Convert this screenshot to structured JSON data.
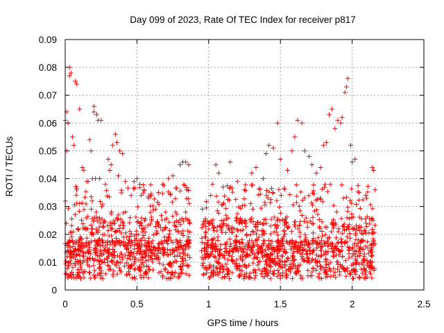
{
  "chart_data": {
    "type": "scatter",
    "title": "Day 099 of 2023, Rate Of TEC Index for receiver p817",
    "xlabel": "GPS time / hours",
    "ylabel": "ROTI / TECUs",
    "xlim": [
      0,
      2.5
    ],
    "ylim": [
      0,
      0.09
    ],
    "xticks": [
      0,
      0.5,
      1,
      1.5,
      2,
      2.5
    ],
    "xtick_labels": [
      "0",
      "0.5",
      "1",
      "1.5",
      "2",
      "2.5"
    ],
    "yticks": [
      0,
      0.01,
      0.02,
      0.03,
      0.04,
      0.05,
      0.06,
      0.07,
      0.08,
      0.09
    ],
    "ytick_labels": [
      "0",
      "0.01",
      "0.02",
      "0.03",
      "0.04",
      "0.05",
      "0.06",
      "0.07",
      "0.08",
      "0.09"
    ],
    "grid": true,
    "marker": "+",
    "series_color": "#ff0000",
    "series": [
      {
        "segments": [
          [
            0.0,
            0.87
          ],
          [
            0.95,
            2.16
          ]
        ],
        "points": [
          [
            0.0,
            0.061
          ],
          [
            0.01,
            0.064
          ],
          [
            0.01,
            0.05
          ],
          [
            0.02,
            0.06
          ],
          [
            0.03,
            0.08
          ],
          [
            0.03,
            0.077
          ],
          [
            0.04,
            0.078
          ],
          [
            0.05,
            0.055
          ],
          [
            0.06,
            0.052
          ],
          [
            0.07,
            0.075
          ],
          [
            0.08,
            0.074
          ],
          [
            0.1,
            0.065
          ],
          [
            0.12,
            0.044
          ],
          [
            0.15,
            0.039
          ],
          [
            0.17,
            0.054
          ],
          [
            0.18,
            0.05
          ],
          [
            0.2,
            0.066
          ],
          [
            0.2,
            0.064
          ],
          [
            0.22,
            0.063
          ],
          [
            0.23,
            0.061
          ],
          [
            0.25,
            0.061
          ],
          [
            0.3,
            0.047
          ],
          [
            0.33,
            0.052
          ],
          [
            0.35,
            0.056
          ],
          [
            0.36,
            0.053
          ],
          [
            0.38,
            0.05
          ],
          [
            0.4,
            0.049
          ],
          [
            0.13,
            0.043
          ],
          [
            0.16,
            0.039
          ],
          [
            0.19,
            0.04
          ],
          [
            0.21,
            0.04
          ],
          [
            0.24,
            0.04
          ],
          [
            0.28,
            0.038
          ],
          [
            0.31,
            0.043
          ],
          [
            0.32,
            0.045
          ],
          [
            0.37,
            0.041
          ],
          [
            0.42,
            0.039
          ],
          [
            0.48,
            0.039
          ],
          [
            0.5,
            0.04
          ],
          [
            0.52,
            0.038
          ],
          [
            0.55,
            0.036
          ],
          [
            0.6,
            0.034
          ],
          [
            0.65,
            0.035
          ],
          [
            0.68,
            0.038
          ],
          [
            0.72,
            0.04
          ],
          [
            0.75,
            0.041
          ],
          [
            0.8,
            0.045
          ],
          [
            0.82,
            0.046
          ],
          [
            0.84,
            0.046
          ],
          [
            0.86,
            0.045
          ],
          [
            0.46,
            0.034
          ],
          [
            0.53,
            0.034
          ],
          [
            0.58,
            0.033
          ],
          [
            0.63,
            0.029
          ],
          [
            0.7,
            0.028
          ],
          [
            0.77,
            0.028
          ],
          [
            0.84,
            0.028
          ],
          [
            1.0,
            0.024
          ],
          [
            1.05,
            0.045
          ],
          [
            1.07,
            0.042
          ],
          [
            1.1,
            0.037
          ],
          [
            1.15,
            0.046
          ],
          [
            1.2,
            0.039
          ],
          [
            1.25,
            0.036
          ],
          [
            1.3,
            0.042
          ],
          [
            1.33,
            0.044
          ],
          [
            1.38,
            0.04
          ],
          [
            1.4,
            0.049
          ],
          [
            1.42,
            0.052
          ],
          [
            1.45,
            0.051
          ],
          [
            1.48,
            0.06
          ],
          [
            1.5,
            0.047
          ],
          [
            1.55,
            0.043
          ],
          [
            1.58,
            0.05
          ],
          [
            1.6,
            0.055
          ],
          [
            1.62,
            0.061
          ],
          [
            1.65,
            0.06
          ],
          [
            1.67,
            0.05
          ],
          [
            1.7,
            0.048
          ],
          [
            1.72,
            0.045
          ],
          [
            1.75,
            0.042
          ],
          [
            1.78,
            0.044
          ],
          [
            1.8,
            0.052
          ],
          [
            1.82,
            0.053
          ],
          [
            1.84,
            0.063
          ],
          [
            1.86,
            0.065
          ],
          [
            1.88,
            0.058
          ],
          [
            1.9,
            0.061
          ],
          [
            1.92,
            0.06
          ],
          [
            1.93,
            0.062
          ],
          [
            1.95,
            0.071
          ],
          [
            1.96,
            0.073
          ],
          [
            1.97,
            0.076
          ],
          [
            1.99,
            0.052
          ],
          [
            2.0,
            0.046
          ],
          [
            2.02,
            0.047
          ],
          [
            2.05,
            0.035
          ],
          [
            2.1,
            0.033
          ],
          [
            2.14,
            0.044
          ],
          [
            2.15,
            0.043
          ],
          [
            2.16,
            0.036
          ]
        ]
      }
    ]
  }
}
